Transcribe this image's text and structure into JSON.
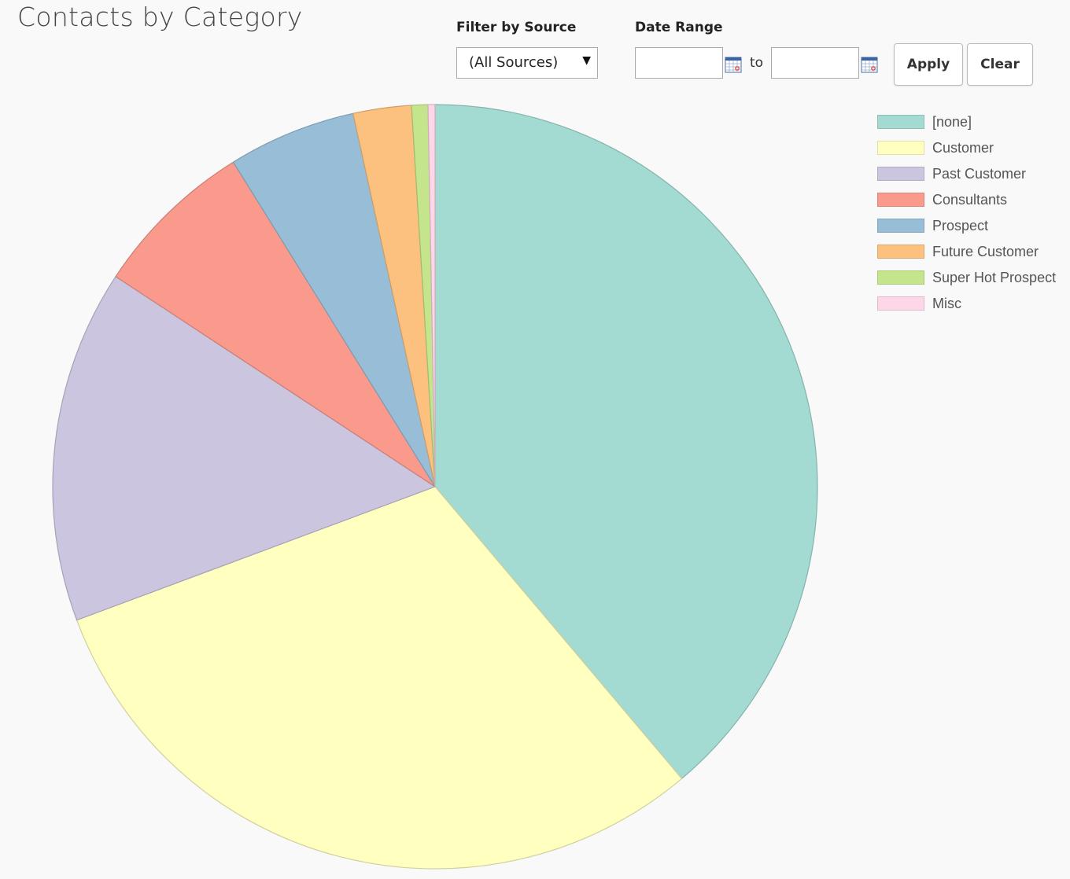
{
  "page": {
    "title": "Contacts by Category"
  },
  "filters": {
    "source_label": "Filter by Source",
    "source_value": "(All Sources)",
    "range_label": "Date Range",
    "from_value": "",
    "to_label": "to",
    "to_value": "",
    "apply_label": "Apply",
    "clear_label": "Clear"
  },
  "icons": {
    "dropdown": "caret-down-icon",
    "calendar": "calendar-icon"
  },
  "chart_data": {
    "type": "pie",
    "title": "Contacts by Category",
    "legend_position": "top-right",
    "slices": [
      {
        "label": "[none]",
        "value": 39.5,
        "color": "#a3dad1"
      },
      {
        "label": "Customer",
        "value": 31.0,
        "color": "#ffffc0"
      },
      {
        "label": "Past Customer",
        "value": 15.2,
        "color": "#cbc5e0"
      },
      {
        "label": "Consultants",
        "value": 7.0,
        "color": "#fa9a8c"
      },
      {
        "label": "Prospect",
        "value": 5.5,
        "color": "#98bdd7"
      },
      {
        "label": "Future Customer",
        "value": 2.5,
        "color": "#fcc17e"
      },
      {
        "label": "Super Hot Prospect",
        "value": 0.7,
        "color": "#c4e58b"
      },
      {
        "label": "Misc",
        "value": 0.3,
        "color": "#fdd6e8"
      }
    ]
  }
}
